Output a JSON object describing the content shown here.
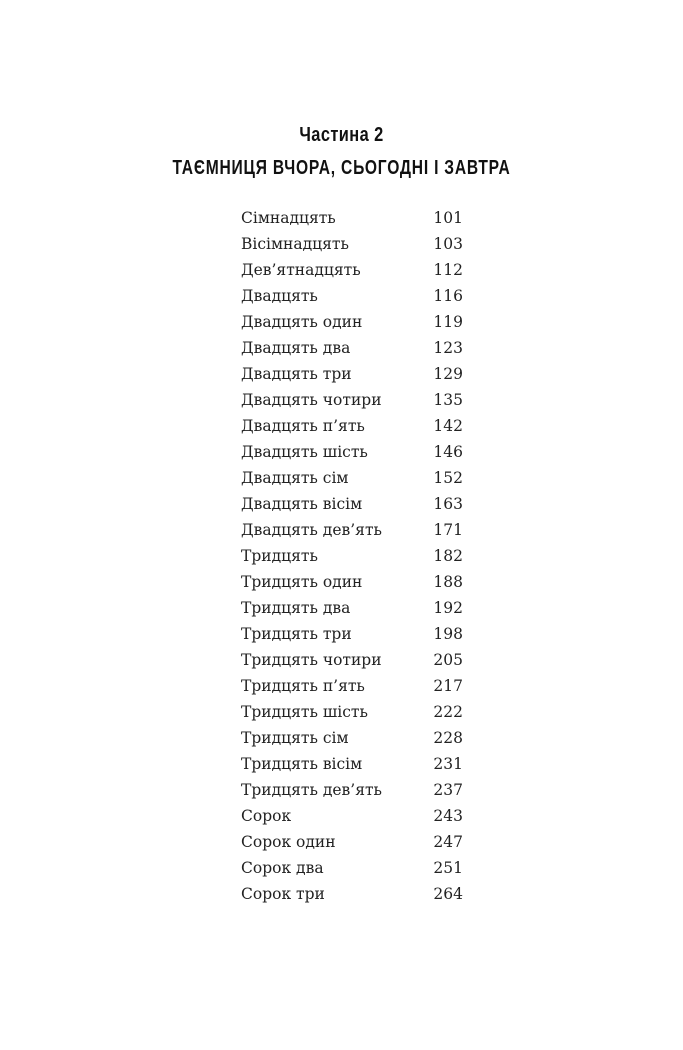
{
  "part_label": "Частина 2",
  "part_title": "ТАЄМНИЦЯ ВЧОРА, СЬОГОДНІ І ЗАВТРА",
  "toc": [
    {
      "title": "Сімнадцять",
      "page": "101"
    },
    {
      "title": "Вісімнадцять",
      "page": "103"
    },
    {
      "title": "Дев’ятнадцять",
      "page": "112"
    },
    {
      "title": "Двадцять",
      "page": "116"
    },
    {
      "title": "Двадцять один",
      "page": "119"
    },
    {
      "title": "Двадцять два",
      "page": "123"
    },
    {
      "title": "Двадцять три",
      "page": "129"
    },
    {
      "title": "Двадцять чотири",
      "page": "135"
    },
    {
      "title": "Двадцять п’ять",
      "page": "142"
    },
    {
      "title": "Двадцять шість",
      "page": "146"
    },
    {
      "title": "Двадцять сім",
      "page": "152"
    },
    {
      "title": "Двадцять вісім",
      "page": "163"
    },
    {
      "title": "Двадцять дев’ять",
      "page": "171"
    },
    {
      "title": "Тридцять",
      "page": "182"
    },
    {
      "title": "Тридцять один",
      "page": "188"
    },
    {
      "title": "Тридцять два",
      "page": "192"
    },
    {
      "title": "Тридцять три",
      "page": "198"
    },
    {
      "title": "Тридцять чотири",
      "page": "205"
    },
    {
      "title": "Тридцять п’ять",
      "page": "217"
    },
    {
      "title": "Тридцять шість",
      "page": "222"
    },
    {
      "title": "Тридцять сім",
      "page": "228"
    },
    {
      "title": "Тридцять вісім",
      "page": "231"
    },
    {
      "title": "Тридцять дев’ять",
      "page": "237"
    },
    {
      "title": "Сорок",
      "page": "243"
    },
    {
      "title": "Сорок один",
      "page": "247"
    },
    {
      "title": "Сорок два",
      "page": "251"
    },
    {
      "title": "Сорок три",
      "page": "264"
    }
  ]
}
